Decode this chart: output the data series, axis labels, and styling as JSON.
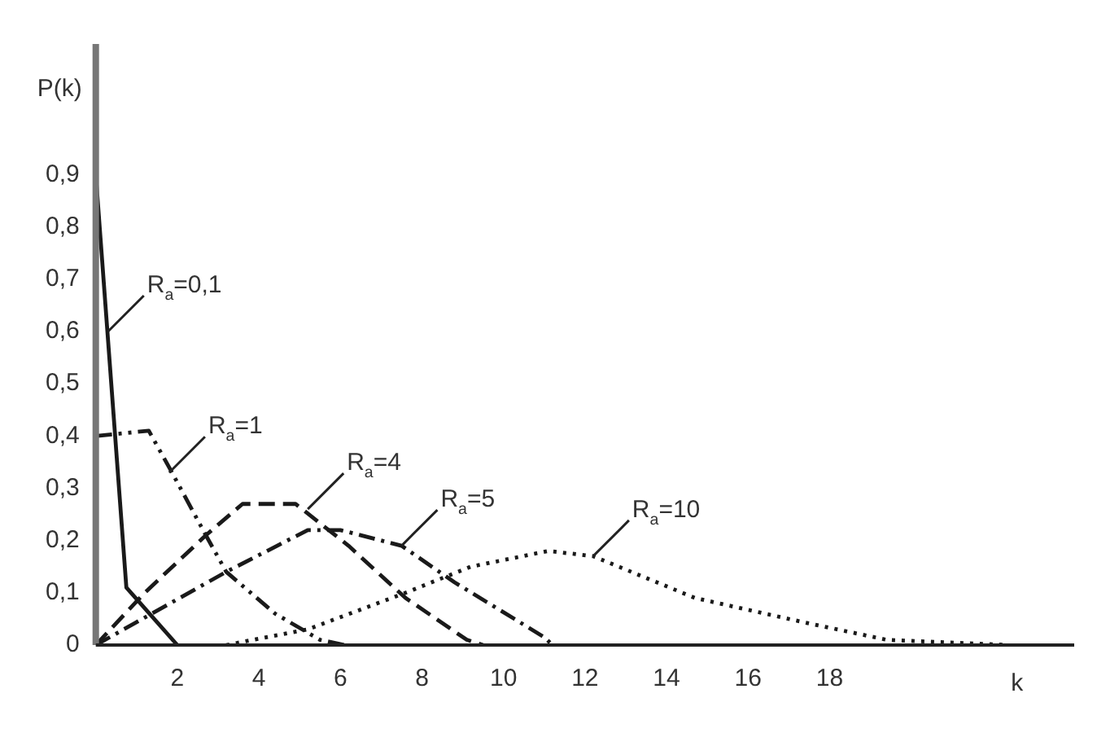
{
  "chart_data": {
    "type": "line",
    "xlabel": "k",
    "ylabel": "P(k)",
    "xlim": [
      0,
      24
    ],
    "xticks": [
      2,
      4,
      6,
      8,
      10,
      12,
      14,
      16,
      18
    ],
    "ylim": [
      0,
      1.15
    ],
    "yticks": [
      0,
      {
        "value": 0.1,
        "label": "0,1"
      },
      {
        "value": 0.2,
        "label": "0,2"
      },
      {
        "value": 0.3,
        "label": "0,3"
      },
      {
        "value": 0.4,
        "label": "0,4"
      },
      {
        "value": 0.5,
        "label": "0,5"
      },
      {
        "value": 0.6,
        "label": "0,6"
      },
      {
        "value": 0.7,
        "label": "0,7"
      },
      {
        "value": 0.8,
        "label": "0,8"
      },
      {
        "value": 0.9,
        "label": "0,9"
      }
    ],
    "grid": false,
    "legend": false,
    "marker": "none",
    "series": [
      {
        "color": "#1a1a1a",
        "line_style": "solid",
        "x": [
          0,
          0.75,
          2
        ],
        "values": [
          0.9,
          0.11,
          0
        ]
      },
      {
        "color": "#1a1a1a",
        "line_style": "dashdotdot",
        "x": [
          0,
          1.3,
          1.8,
          2.7,
          3.2,
          4.4,
          5.5,
          6.1
        ],
        "values": [
          0.4,
          0.41,
          0.34,
          0.21,
          0.14,
          0.06,
          0.01,
          0
        ]
      },
      {
        "color": "#1a1a1a",
        "line_style": "dashed",
        "x": [
          0,
          1.2,
          2.7,
          3.6,
          4.9,
          6.2,
          7.6,
          9.1,
          9.5
        ],
        "values": [
          0,
          0.1,
          0.21,
          0.27,
          0.27,
          0.19,
          0.09,
          0.01,
          0
        ]
      },
      {
        "color": "#1a1a1a",
        "line_style": "dashdot",
        "x": [
          0,
          3.2,
          5.2,
          6,
          7.5,
          8.8,
          11,
          11.2
        ],
        "values": [
          0,
          0.14,
          0.22,
          0.22,
          0.19,
          0.12,
          0.015,
          0
        ]
      },
      {
        "color": "#1a1a1a",
        "line_style": "dotted",
        "x": [
          3.2,
          5.2,
          7.6,
          9.2,
          11.1,
          12.2,
          14.7,
          17.4,
          19.4,
          22.4
        ],
        "values": [
          0,
          0.03,
          0.1,
          0.15,
          0.18,
          0.17,
          0.09,
          0.043,
          0.01,
          0
        ]
      }
    ],
    "annotations": [
      {
        "text": "R$_{a}$=0,1",
        "x": 0.3,
        "y": 0.6
      },
      {
        "text": "R$_{a}$=1",
        "x": 1.8,
        "y": 0.33
      },
      {
        "text": "R$_{a}$=4",
        "x": 5.2,
        "y": 0.26
      },
      {
        "text": "R$_{a}$=5",
        "x": 7.5,
        "y": 0.19
      },
      {
        "text": "R$_{a}$=10",
        "x": 12.2,
        "y": 0.17
      }
    ]
  }
}
